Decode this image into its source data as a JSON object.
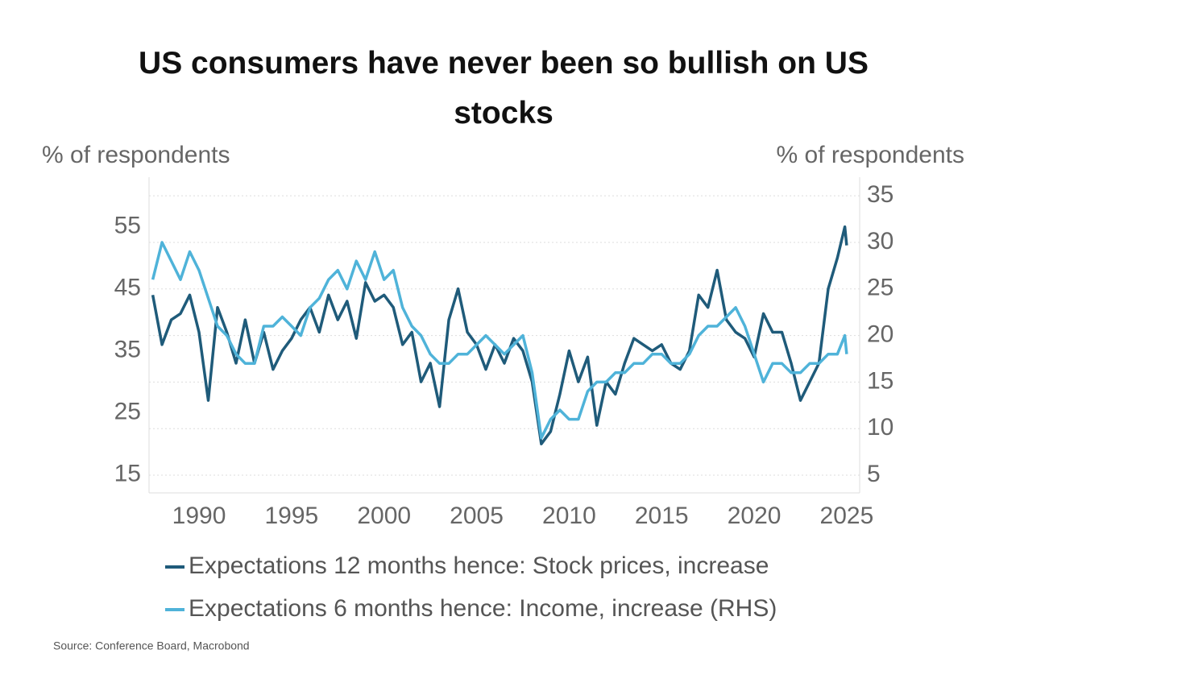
{
  "chart_data": {
    "type": "line",
    "title": "US consumers have never been so bullish on US stocks",
    "y_label": "% of respondents",
    "y2_label": "% of respondents",
    "source": "Source: Conference Board, Macrobond",
    "x": [
      1987.5,
      1988,
      1988.5,
      1989,
      1989.5,
      1990,
      1990.5,
      1991,
      1991.5,
      1992,
      1992.5,
      1993,
      1993.5,
      1994,
      1994.5,
      1995,
      1995.5,
      1996,
      1996.5,
      1997,
      1997.5,
      1998,
      1998.5,
      1999,
      1999.5,
      2000,
      2000.5,
      2001,
      2001.5,
      2002,
      2002.5,
      2003,
      2003.5,
      2004,
      2004.5,
      2005,
      2005.5,
      2006,
      2006.5,
      2007,
      2007.5,
      2008,
      2008.5,
      2009,
      2009.5,
      2010,
      2010.5,
      2011,
      2011.5,
      2012,
      2012.5,
      2013,
      2013.5,
      2014,
      2014.5,
      2015,
      2015.5,
      2016,
      2016.5,
      2017,
      2017.5,
      2018,
      2018.5,
      2019,
      2019.5,
      2020,
      2020.5,
      2021,
      2021.5,
      2022,
      2022.5,
      2023,
      2023.5,
      2024,
      2024.5,
      2024.9,
      2025
    ],
    "series": [
      {
        "name": "Expectations 12 months hence: Stock prices, increase",
        "color": "#1f5b7a",
        "values": [
          44,
          36,
          40,
          41,
          44,
          38,
          27,
          42,
          38,
          33,
          40,
          33,
          38,
          32,
          35,
          37,
          40,
          42,
          38,
          44,
          40,
          43,
          37,
          46,
          43,
          44,
          42,
          36,
          38,
          30,
          33,
          26,
          40,
          45,
          38,
          36,
          32,
          36,
          33,
          37,
          35,
          30,
          20,
          22,
          28,
          35,
          30,
          34,
          23,
          30,
          28,
          33,
          37,
          36,
          35,
          36,
          33,
          32,
          35,
          44,
          42,
          48,
          40,
          38,
          37,
          34,
          41,
          38,
          38,
          33,
          27,
          30,
          33,
          45,
          50,
          55,
          52
        ]
      },
      {
        "name": "Expectations 6 months hence: Income, increase (RHS)",
        "color": "#4fb3d9",
        "axis": "y2",
        "values": [
          26,
          30,
          28,
          26,
          29,
          27,
          24,
          21,
          20,
          18,
          17,
          17,
          21,
          21,
          22,
          21,
          20,
          23,
          24,
          26,
          27,
          25,
          28,
          26,
          29,
          26,
          27,
          23,
          21,
          20,
          18,
          17,
          17,
          18,
          18,
          19,
          20,
          19,
          18,
          19,
          20,
          16,
          9,
          11,
          12,
          11,
          11,
          14,
          15,
          15,
          16,
          16,
          17,
          17,
          18,
          18,
          17,
          17,
          18,
          20,
          21,
          21,
          22,
          23,
          21,
          18,
          15,
          17,
          17,
          16,
          16,
          17,
          17,
          18,
          18,
          20,
          18
        ]
      }
    ],
    "xlim": [
      1987.3,
      2025.7
    ],
    "xticks": [
      1990,
      1995,
      2000,
      2005,
      2010,
      2015,
      2020,
      2025
    ],
    "ylim": [
      12.1,
      63
    ],
    "yticks": [
      15,
      25,
      35,
      45,
      55
    ],
    "y2lim": [
      3.1,
      37
    ],
    "y2ticks": [
      5,
      10,
      15,
      20,
      25,
      30,
      35
    ],
    "grid": true,
    "legend": "bottom"
  }
}
